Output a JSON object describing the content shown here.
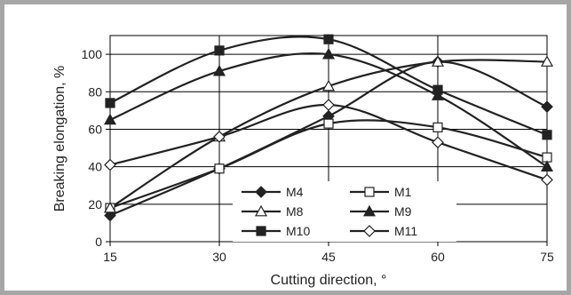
{
  "chart_data": {
    "type": "line",
    "title": "",
    "xlabel": "Cutting direction, °",
    "ylabel": "Breaking elongation, %",
    "x": [
      15,
      30,
      45,
      60,
      75
    ],
    "xlim": [
      15,
      75
    ],
    "ylim": [
      0,
      110
    ],
    "xticks": [
      15,
      30,
      45,
      60,
      75
    ],
    "yticks": [
      0,
      20,
      40,
      60,
      80,
      100
    ],
    "grid": true,
    "legend_position": "lower-center",
    "smooth": true,
    "series": [
      {
        "name": "M4",
        "marker": "diamond-filled",
        "values": [
          14,
          39,
          67,
          96,
          72
        ]
      },
      {
        "name": "M1",
        "marker": "square-open",
        "values": [
          18,
          39,
          63,
          61,
          45
        ]
      },
      {
        "name": "M8",
        "marker": "triangle-open",
        "values": [
          18,
          56,
          83,
          96,
          96
        ]
      },
      {
        "name": "M9",
        "marker": "triangle-filled",
        "values": [
          65,
          91,
          100,
          78,
          40
        ]
      },
      {
        "name": "M10",
        "marker": "square-filled",
        "values": [
          74,
          102,
          108,
          81,
          57
        ]
      },
      {
        "name": "M11",
        "marker": "diamond-open",
        "values": [
          41,
          56,
          73,
          53,
          33
        ]
      }
    ],
    "colors": {
      "line": "#222222",
      "grid": "#000000",
      "frame": "#a6a6a6"
    }
  }
}
